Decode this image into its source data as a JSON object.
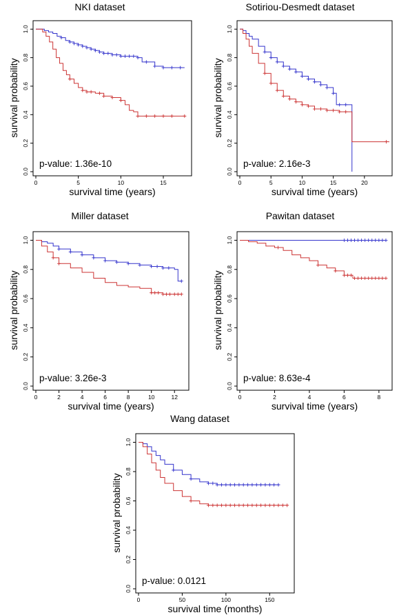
{
  "chart_data": [
    {
      "type": "line",
      "title": "NKI dataset",
      "xlabel": "survival time (years)",
      "ylabel": "survival probability",
      "annotation": "p-value: 1.36e-10",
      "xlim": [
        0,
        18
      ],
      "ylim": [
        0,
        1
      ],
      "xticks": [
        0,
        5,
        10,
        15
      ],
      "xtick_labels": [
        "0",
        "5",
        "10",
        "15"
      ],
      "yticks": [
        0.0,
        0.2,
        0.4,
        0.6,
        0.8,
        1.0
      ],
      "ytick_labels": [
        "0.0",
        "0.2",
        "0.4",
        "0.6",
        "0.8",
        "1.0"
      ],
      "series": [
        {
          "color": "#3333cc",
          "x": [
            0,
            0.5,
            1,
            1.5,
            2,
            2.5,
            3,
            3.5,
            4,
            4.5,
            5,
            5.5,
            6,
            6.5,
            7,
            7.5,
            8,
            9,
            10,
            11,
            12,
            12.5,
            13,
            14,
            15,
            16,
            17.5
          ],
          "y": [
            1.0,
            1.0,
            0.99,
            0.98,
            0.97,
            0.95,
            0.94,
            0.92,
            0.91,
            0.9,
            0.89,
            0.88,
            0.87,
            0.86,
            0.85,
            0.84,
            0.83,
            0.82,
            0.81,
            0.81,
            0.8,
            0.77,
            0.77,
            0.74,
            0.73,
            0.73,
            0.73
          ],
          "censor_x": [
            3,
            4,
            4.5,
            5,
            5.5,
            6,
            6.5,
            7,
            7.5,
            8,
            8.5,
            9,
            9.5,
            10,
            10.5,
            11,
            11.5,
            12,
            13,
            14,
            15,
            16,
            17
          ]
        },
        {
          "color": "#cc3333",
          "x": [
            0,
            0.8,
            1.2,
            1.6,
            2,
            2.4,
            2.8,
            3.2,
            3.6,
            4,
            4.5,
            5,
            5.5,
            6,
            7,
            8,
            9,
            10,
            10.5,
            11,
            11.5,
            12,
            14,
            15,
            17.5
          ],
          "y": [
            1.0,
            0.98,
            0.95,
            0.91,
            0.86,
            0.8,
            0.76,
            0.71,
            0.68,
            0.65,
            0.62,
            0.59,
            0.57,
            0.56,
            0.55,
            0.53,
            0.52,
            0.5,
            0.47,
            0.43,
            0.42,
            0.39,
            0.39,
            0.39,
            0.39
          ],
          "censor_x": [
            4,
            5.5,
            6,
            6.5,
            7.5,
            8,
            9,
            10,
            12,
            13,
            14,
            15,
            16,
            17.5
          ]
        }
      ]
    },
    {
      "type": "line",
      "title": "Sotiriou-Desmedt dataset",
      "xlabel": "survival time (years)",
      "ylabel": "survival probability",
      "annotation": "p-value: 2.16e-3",
      "xlim": [
        0,
        24
      ],
      "ylim": [
        0,
        1
      ],
      "xticks": [
        0,
        5,
        10,
        15,
        20
      ],
      "xtick_labels": [
        "0",
        "5",
        "10",
        "15",
        "20"
      ],
      "yticks": [
        0.0,
        0.2,
        0.4,
        0.6,
        0.8,
        1.0
      ],
      "ytick_labels": [
        "0.0",
        "0.2",
        "0.4",
        "0.6",
        "0.8",
        "1.0"
      ],
      "series": [
        {
          "color": "#3333cc",
          "x": [
            0,
            0.5,
            1,
            1.5,
            2,
            3,
            4,
            5,
            6,
            7,
            8,
            9,
            10,
            11,
            12,
            13,
            14,
            15,
            15.5,
            16,
            17,
            18
          ],
          "y": [
            1.0,
            0.99,
            0.97,
            0.95,
            0.93,
            0.88,
            0.84,
            0.8,
            0.77,
            0.74,
            0.72,
            0.7,
            0.67,
            0.65,
            0.63,
            0.61,
            0.59,
            0.55,
            0.47,
            0.47,
            0.47,
            0.0
          ],
          "censor_x": [
            4,
            5,
            6,
            7,
            8,
            9,
            10,
            11,
            12,
            13,
            14,
            15,
            16,
            17
          ]
        },
        {
          "color": "#cc3333",
          "x": [
            0,
            0.5,
            1,
            1.5,
            2,
            3,
            4,
            5,
            6,
            7,
            8,
            9,
            10,
            11,
            12,
            14,
            16,
            18,
            24
          ],
          "y": [
            1.0,
            0.97,
            0.93,
            0.88,
            0.83,
            0.76,
            0.69,
            0.62,
            0.57,
            0.53,
            0.51,
            0.49,
            0.47,
            0.46,
            0.44,
            0.43,
            0.42,
            0.21,
            0.21
          ],
          "censor_x": [
            4,
            5,
            6,
            7,
            8,
            9,
            10,
            11,
            12,
            13,
            14,
            15,
            16,
            17,
            23.5
          ]
        }
      ]
    },
    {
      "type": "line",
      "title": "Miller dataset",
      "xlabel": "survival time (years)",
      "ylabel": "survival probability",
      "annotation": "p-value: 3.26e-3",
      "xlim": [
        0,
        13
      ],
      "ylim": [
        0,
        1
      ],
      "xticks": [
        0,
        2,
        4,
        6,
        8,
        10,
        12
      ],
      "xtick_labels": [
        "0",
        "2",
        "4",
        "6",
        "8",
        "10",
        "12"
      ],
      "yticks": [
        0.0,
        0.2,
        0.4,
        0.6,
        0.8,
        1.0
      ],
      "ytick_labels": [
        "0.0",
        "0.2",
        "0.4",
        "0.6",
        "0.8",
        "1.0"
      ],
      "series": [
        {
          "color": "#3333cc",
          "x": [
            0,
            0.5,
            1,
            1.5,
            2,
            3,
            4,
            5,
            6,
            7,
            8,
            9,
            10,
            11,
            12,
            12.3,
            12.6
          ],
          "y": [
            1.0,
            0.99,
            0.98,
            0.96,
            0.94,
            0.92,
            0.9,
            0.88,
            0.86,
            0.85,
            0.84,
            0.83,
            0.82,
            0.81,
            0.8,
            0.72,
            0.72
          ],
          "censor_x": [
            2,
            3,
            4,
            5,
            6,
            7,
            8,
            9,
            10,
            10.5,
            11,
            11.5,
            12.6
          ]
        },
        {
          "color": "#cc3333",
          "x": [
            0,
            0.5,
            1,
            1.5,
            2,
            3,
            4,
            5,
            6,
            7,
            8,
            9,
            10,
            11,
            12,
            12.6
          ],
          "y": [
            1.0,
            0.96,
            0.92,
            0.88,
            0.84,
            0.81,
            0.78,
            0.74,
            0.71,
            0.69,
            0.68,
            0.67,
            0.64,
            0.63,
            0.63,
            0.63
          ],
          "censor_x": [
            1.5,
            2,
            10,
            10.3,
            10.6,
            11,
            11.3,
            11.6,
            12,
            12.3,
            12.6
          ]
        }
      ]
    },
    {
      "type": "line",
      "title": "Pawitan dataset",
      "xlabel": "survival time (years)",
      "ylabel": "survival probability",
      "annotation": "p-value: 8.63e-4",
      "xlim": [
        0,
        8.6
      ],
      "ylim": [
        0,
        1
      ],
      "xticks": [
        0,
        2,
        4,
        6,
        8
      ],
      "xtick_labels": [
        "0",
        "2",
        "4",
        "6",
        "8"
      ],
      "yticks": [
        0.0,
        0.2,
        0.4,
        0.6,
        0.8,
        1.0
      ],
      "ytick_labels": [
        "0.0",
        "0.2",
        "0.4",
        "0.6",
        "0.8",
        "1.0"
      ],
      "series": [
        {
          "color": "#3333cc",
          "x": [
            0,
            8.4
          ],
          "y": [
            1.0,
            1.0
          ],
          "censor_x": [
            6,
            6.2,
            6.4,
            6.6,
            6.8,
            7,
            7.2,
            7.4,
            7.6,
            7.8,
            8,
            8.2,
            8.4
          ]
        },
        {
          "color": "#cc3333",
          "x": [
            0,
            0.5,
            1,
            1.5,
            2,
            2.5,
            3,
            3.5,
            4,
            4.5,
            5,
            5.5,
            6,
            6.5,
            7,
            8.4
          ],
          "y": [
            1.0,
            0.99,
            0.98,
            0.96,
            0.95,
            0.93,
            0.9,
            0.88,
            0.86,
            0.83,
            0.81,
            0.79,
            0.76,
            0.74,
            0.74,
            0.74
          ],
          "censor_x": [
            2.2,
            4.5,
            5.5,
            6,
            6.2,
            6.4,
            6.6,
            6.8,
            7,
            7.2,
            7.4,
            7.6,
            7.8,
            8,
            8.2,
            8.4
          ]
        }
      ]
    },
    {
      "type": "line",
      "title": "Wang dataset",
      "xlabel": "survival time (months)",
      "ylabel": "survival probability",
      "annotation": "p-value: 0.0121",
      "xlim": [
        0,
        175
      ],
      "ylim": [
        0,
        1
      ],
      "xticks": [
        0,
        50,
        100,
        150
      ],
      "xtick_labels": [
        "0",
        "50",
        "100",
        "150"
      ],
      "yticks": [
        0.0,
        0.2,
        0.4,
        0.6,
        0.8,
        1.0
      ],
      "ytick_labels": [
        "0.0",
        "0.2",
        "0.4",
        "0.6",
        "0.8",
        "1.0"
      ],
      "series": [
        {
          "color": "#3333cc",
          "x": [
            0,
            5,
            10,
            15,
            20,
            25,
            30,
            40,
            50,
            60,
            70,
            80,
            90,
            160
          ],
          "y": [
            1.0,
            0.99,
            0.97,
            0.94,
            0.91,
            0.88,
            0.85,
            0.81,
            0.78,
            0.75,
            0.73,
            0.72,
            0.71,
            0.71
          ],
          "censor_x": [
            40,
            60,
            80,
            85,
            90,
            95,
            100,
            105,
            110,
            115,
            120,
            125,
            130,
            135,
            140,
            145,
            150,
            155,
            160
          ]
        },
        {
          "color": "#cc3333",
          "x": [
            0,
            5,
            10,
            15,
            20,
            25,
            30,
            40,
            50,
            60,
            70,
            80,
            90,
            170
          ],
          "y": [
            1.0,
            0.97,
            0.92,
            0.86,
            0.81,
            0.76,
            0.72,
            0.67,
            0.63,
            0.6,
            0.58,
            0.57,
            0.57,
            0.57
          ],
          "censor_x": [
            60,
            80,
            85,
            90,
            95,
            100,
            105,
            110,
            115,
            120,
            125,
            130,
            135,
            140,
            145,
            150,
            155,
            160,
            165,
            170
          ]
        }
      ]
    }
  ]
}
